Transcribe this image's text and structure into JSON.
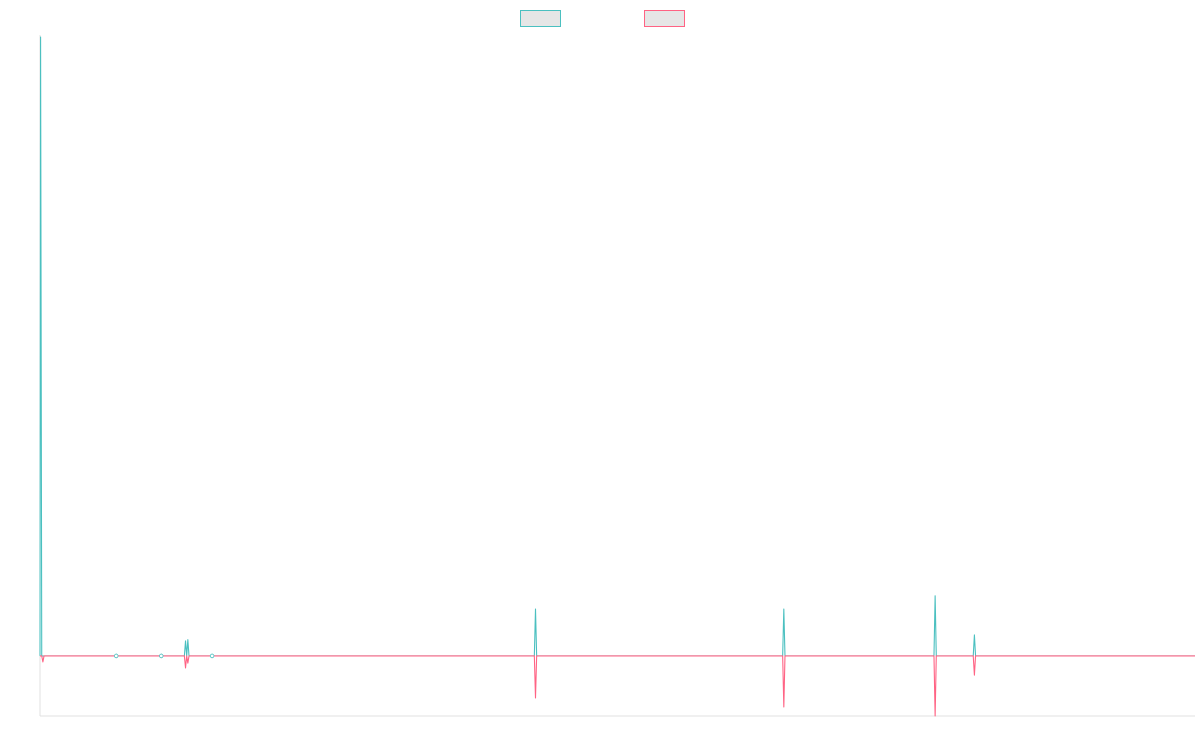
{
  "colors": {
    "series_a": "#4bc0c0",
    "series_b": "#ff6384",
    "legend_fill": "#e6e6e6",
    "axis": "#e0e0e0"
  },
  "legend": {
    "placement": "top-center",
    "items": [
      {
        "label": "",
        "color": "#4bc0c0"
      },
      {
        "label": "",
        "color": "#ff6384"
      }
    ]
  },
  "chart_data": {
    "type": "line",
    "title": "",
    "xlabel": "",
    "ylabel": "",
    "grid": false,
    "show_tick_labels": false,
    "xlim": [
      0,
      1000
    ],
    "ylim": [
      -10,
      103
    ],
    "series": [
      {
        "color": "#4bc0c0",
        "points": [
          [
            0,
            0
          ],
          [
            0.5,
            103
          ],
          [
            1.5,
            0
          ],
          [
            5,
            0
          ],
          [
            65,
            0
          ],
          [
            66,
            0.3
          ],
          [
            67,
            0
          ],
          [
            104,
            0
          ],
          [
            105,
            0.3
          ],
          [
            106,
            0
          ],
          [
            125,
            0
          ],
          [
            126,
            2.5
          ],
          [
            127,
            0
          ],
          [
            128,
            2.7
          ],
          [
            129,
            0
          ],
          [
            148,
            0
          ],
          [
            149,
            0.3
          ],
          [
            150,
            0
          ],
          [
            428,
            0
          ],
          [
            429,
            7.8
          ],
          [
            430,
            0
          ],
          [
            643,
            0
          ],
          [
            644,
            7.8
          ],
          [
            645,
            0
          ],
          [
            774,
            0
          ],
          [
            775,
            10
          ],
          [
            776,
            0
          ],
          [
            808,
            0
          ],
          [
            809,
            3.5
          ],
          [
            810,
            0
          ],
          [
            1000,
            0
          ]
        ]
      },
      {
        "color": "#ff6384",
        "points": [
          [
            0,
            0
          ],
          [
            1.5,
            0
          ],
          [
            2.5,
            -1
          ],
          [
            3.5,
            0
          ],
          [
            65,
            0
          ],
          [
            66,
            -0.3
          ],
          [
            67,
            0
          ],
          [
            104,
            0
          ],
          [
            105,
            -0.3
          ],
          [
            106,
            0
          ],
          [
            125,
            0
          ],
          [
            126,
            -2
          ],
          [
            127,
            0
          ],
          [
            128,
            -1.2
          ],
          [
            129,
            0
          ],
          [
            148,
            0
          ],
          [
            149,
            -0.3
          ],
          [
            150,
            0
          ],
          [
            428,
            0
          ],
          [
            429,
            -7
          ],
          [
            430,
            0
          ],
          [
            643,
            0
          ],
          [
            644,
            -8.5
          ],
          [
            645,
            0
          ],
          [
            774,
            0
          ],
          [
            775,
            -10
          ],
          [
            776,
            0
          ],
          [
            808,
            0
          ],
          [
            809,
            -3.2
          ],
          [
            810,
            0
          ],
          [
            1000,
            0
          ]
        ]
      }
    ]
  }
}
